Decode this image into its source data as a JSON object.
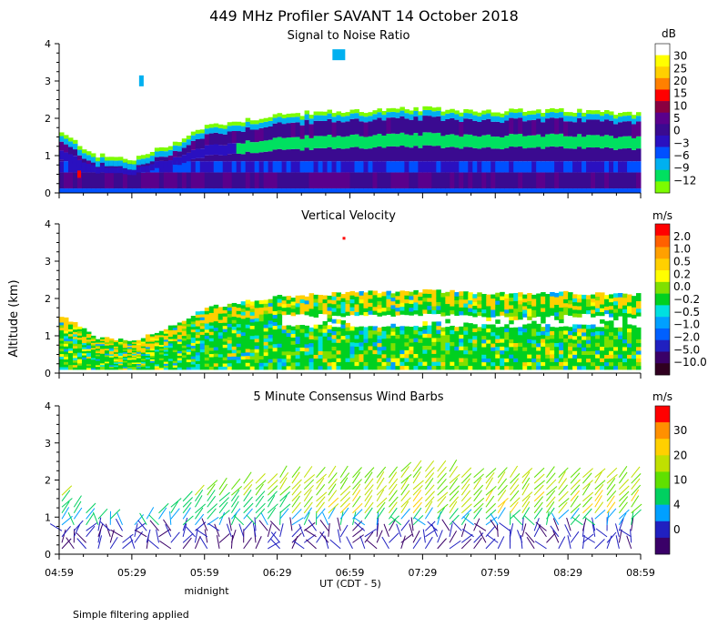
{
  "title": "449 MHz Profiler SAVANT 14 October 2018",
  "xlabel": "UT  (CDT - 5)",
  "ylabel": "Altitude (km)",
  "midnight_label": "midnight",
  "footnote": "Simple filtering applied",
  "colors": {
    "snr": [
      "#7cfc00",
      "#00e060",
      "#00b0f0",
      "#0050ff",
      "#2a10c0",
      "#3a0a90",
      "#5a008c",
      "#8a0040",
      "#ff0000",
      "#ff8000",
      "#ffd000",
      "#ffff00",
      "#ffffff"
    ],
    "vv": [
      "#300020",
      "#3a0068",
      "#2020c0",
      "#0060ff",
      "#00a0ff",
      "#00e0e0",
      "#00d020",
      "#80e000",
      "#ffff00",
      "#ffd000",
      "#ffa000",
      "#ff6000",
      "#ff0000"
    ],
    "wind": [
      "#3a0068",
      "#2020c0",
      "#00a0ff",
      "#00d060",
      "#60e000",
      "#c0e000",
      "#ffd000",
      "#ff9000",
      "#ff0000"
    ]
  },
  "chart_data": [
    {
      "type": "heatmap",
      "title": "Signal to Noise Ratio",
      "unit": "dB",
      "xlim": [
        "04:59",
        "08:59"
      ],
      "ylim": [
        0,
        4
      ],
      "yticks": [
        "0",
        "1",
        "2",
        "3",
        "4"
      ],
      "colorbar_ticks": [
        "30",
        "25",
        "20",
        "15",
        "10",
        "5",
        "0",
        "−3",
        "−6",
        "−9",
        "−12"
      ],
      "echo_top_km": [
        [
          0,
          1.6
        ],
        [
          0.25,
          1.0
        ],
        [
          0.5,
          0.9
        ],
        [
          0.75,
          1.3
        ],
        [
          1.0,
          1.8
        ],
        [
          1.5,
          2.1
        ],
        [
          2.0,
          2.2
        ],
        [
          2.5,
          2.25
        ],
        [
          3.0,
          2.2
        ],
        [
          3.5,
          2.2
        ],
        [
          4.0,
          2.15
        ]
      ]
    },
    {
      "type": "heatmap",
      "title": "Vertical Velocity",
      "unit": "m/s",
      "xlim": [
        "04:59",
        "08:59"
      ],
      "ylim": [
        0,
        4
      ],
      "yticks": [
        "0",
        "1",
        "2",
        "3",
        "4"
      ],
      "colorbar_ticks": [
        "2.0",
        "1.0",
        "0.5",
        "0.2",
        "0.0",
        "−0.2",
        "−0.5",
        "−1.0",
        "−2.0",
        "−5.0",
        "−10.0"
      ]
    },
    {
      "type": "scatter",
      "title": "5 Minute Consensus Wind Barbs",
      "unit": "m/s",
      "xlim": [
        "04:59",
        "08:59"
      ],
      "ylim": [
        0,
        4
      ],
      "yticks": [
        "0",
        "1",
        "2",
        "3",
        "4"
      ],
      "colorbar_ticks": [
        "30",
        "20",
        "10",
        "4",
        "0"
      ]
    }
  ],
  "x_ticks": [
    "04:59",
    "05:29",
    "05:59",
    "06:29",
    "06:59",
    "07:29",
    "07:59",
    "08:29",
    "08:59"
  ]
}
